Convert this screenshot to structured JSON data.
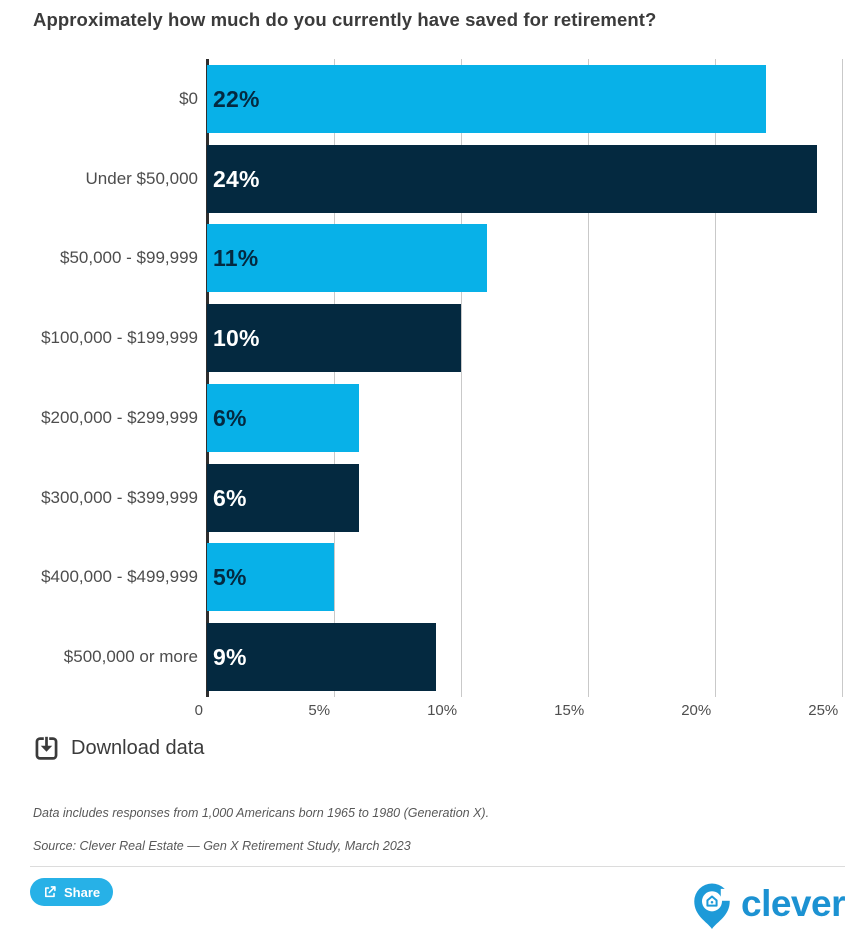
{
  "title": "Approximately how much do you currently have saved for retirement?",
  "chart_data": {
    "type": "bar",
    "orientation": "horizontal",
    "title": "Approximately how much do you currently have saved for retirement?",
    "categories": [
      "$0",
      "Under $50,000",
      "$50,000 - $99,999",
      "$100,000 - $199,999",
      "$200,000 - $299,999",
      "$300,000 - $399,999",
      "$400,000 - $499,999",
      "$500,000 or more"
    ],
    "values": [
      22,
      24,
      11,
      10,
      6,
      6,
      5,
      9
    ],
    "value_labels": [
      "22%",
      "24%",
      "11%",
      "10%",
      "6%",
      "6%",
      "5%",
      "9%"
    ],
    "x_tick_values": [
      0,
      5,
      10,
      15,
      20,
      25
    ],
    "x_tick_labels": [
      "0",
      "5%",
      "10%",
      "15%",
      "20%",
      "25%"
    ],
    "xlim": [
      0,
      25.5
    ],
    "grid": "vertical-only",
    "legend": "none",
    "bar_colors": [
      "#08b1e8",
      "#042940"
    ],
    "value_label_colors": [
      "#042940",
      "#ffffff"
    ]
  },
  "toolbar": {
    "download_label": "Download data"
  },
  "footnotes": {
    "line1": "Data includes responses from 1,000 Americans born 1965 to 1980 (Generation X).",
    "line2": "Source: Clever Real Estate — Gen X Retirement Study, March 2023"
  },
  "footer": {
    "share_label": "Share",
    "brand": "clever"
  }
}
